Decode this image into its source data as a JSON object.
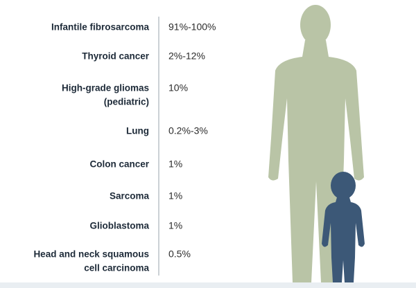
{
  "rows": [
    {
      "label": [
        "Infantile fibrosarcoma"
      ],
      "value": "91%-100%"
    },
    {
      "label": [
        "Thyroid cancer"
      ],
      "value": "2%-12%"
    },
    {
      "label": [
        "High-grade gliomas",
        "(pediatric)"
      ],
      "value": "10%"
    },
    {
      "label": [
        "Lung"
      ],
      "value": "0.2%-3%"
    },
    {
      "label": [
        "Colon cancer"
      ],
      "value": "1%"
    },
    {
      "label": [
        "Sarcoma"
      ],
      "value": "1%"
    },
    {
      "label": [
        "Glioblastoma"
      ],
      "value": "1%"
    },
    {
      "label": [
        "Head and neck squamous",
        "cell carcinoma"
      ],
      "value": "0.5%"
    }
  ]
}
